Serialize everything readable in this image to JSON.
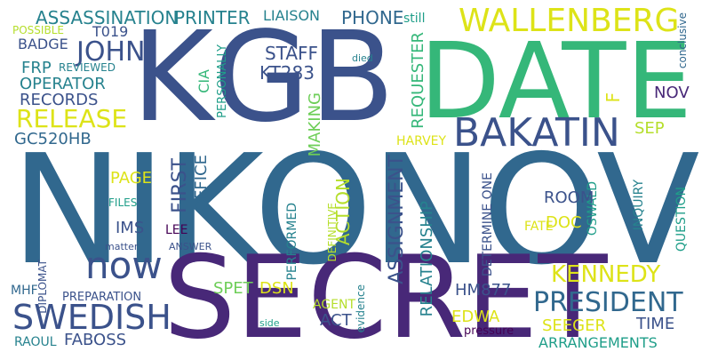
{
  "words": [
    "KGB",
    "DATE",
    "NIKONOV",
    "SECRET",
    "now",
    "BAKATIN",
    "WALLENBERG",
    "SWEDISH",
    "PRESIDENT",
    "KENNEDY",
    "RELEASE",
    "JOHN",
    "ASSASSINATION",
    "PRINTER",
    "LIAISON",
    "PHONE",
    "STAFF",
    "KT283",
    "GC520HB",
    "RECORDS",
    "OPERATOR",
    "BADGE",
    "T019",
    "FRP",
    "REVIEWED",
    "POSSIBLE",
    "still",
    "REQUESTER",
    "F",
    "NOV",
    "SEP",
    "MAKING",
    "CIA",
    "PERSONALLY",
    "HARVEY",
    "ACTION",
    "ASSIGNMENT",
    "FIRST",
    "OFFICE",
    "PAGE",
    "ROOM",
    "DOC",
    "IMS",
    "LEE",
    "FILES",
    "matter",
    "ANSWER",
    "PERFORMED",
    "DETERMINE ONE",
    "INQUIRY",
    "FATE",
    "OSWALD",
    "QUESTION",
    "conclusive",
    "died",
    "DEFINITIVE",
    "MHF",
    "DIPLOMAT",
    "PREPARATION",
    "SPET",
    "DSN",
    "AGENT",
    "ACT",
    "evidence",
    "side",
    "HM877",
    "EDWA",
    "SEEGER",
    "TIME",
    "ARRANGEMENTS",
    "pressure",
    "FABOSS",
    "RAOUL",
    "RELATIONSHIP"
  ]
}
